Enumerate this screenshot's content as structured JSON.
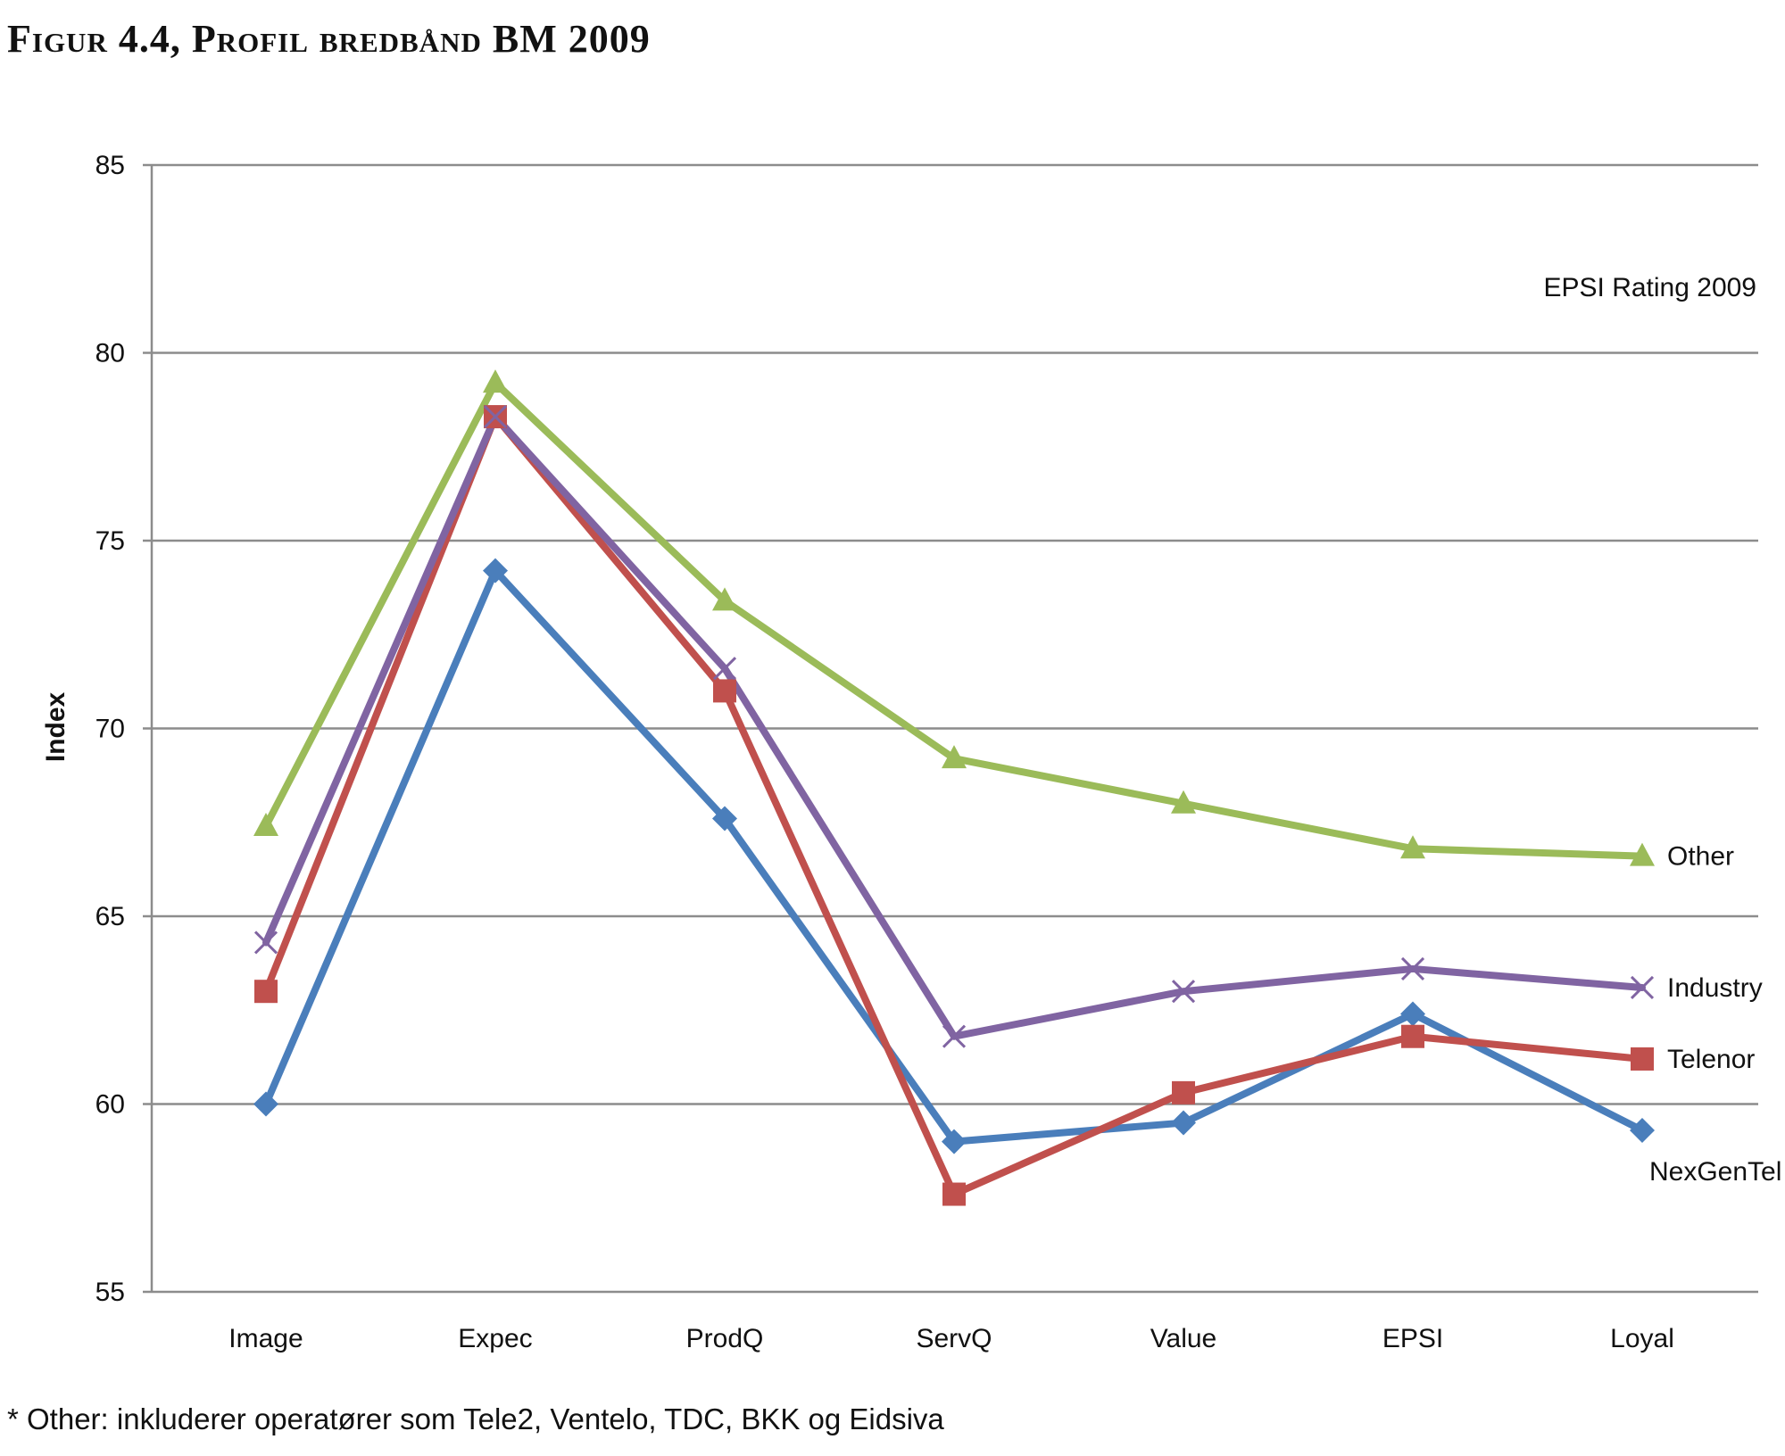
{
  "figure": {
    "title": "Figur 4.4, Profil bredbånd BM 2009",
    "footnote": "* Other: inkluderer operatører som Tele2, Ventelo, TDC, BKK og Eidsiva"
  },
  "chart_data": {
    "type": "line",
    "title": "",
    "annotation": "EPSI Rating 2009",
    "xlabel": "",
    "ylabel": "Index",
    "ylim": [
      55,
      85
    ],
    "yticks": [
      55,
      60,
      65,
      70,
      75,
      80,
      85
    ],
    "grid": true,
    "legend": "inline labels at right end of lines",
    "categories": [
      "Image",
      "Expec",
      "ProdQ",
      "ServQ",
      "Value",
      "EPSI",
      "Loyal"
    ],
    "series": [
      {
        "name": "NexGenTel",
        "color": "#4a7ebb",
        "marker": "diamond",
        "values": [
          60.0,
          74.2,
          67.6,
          59.0,
          59.5,
          62.4,
          59.3
        ]
      },
      {
        "name": "Telenor",
        "color": "#c0504d",
        "marker": "square",
        "values": [
          63.0,
          78.3,
          71.0,
          57.6,
          60.3,
          61.8,
          61.2
        ]
      },
      {
        "name": "Industry",
        "color": "#8064a2",
        "marker": "x",
        "values": [
          64.3,
          78.3,
          71.6,
          61.8,
          63.0,
          63.6,
          63.1
        ]
      },
      {
        "name": "Other",
        "color": "#9bbb59",
        "marker": "triangle",
        "values": [
          67.4,
          79.2,
          73.4,
          69.2,
          68.0,
          66.8,
          66.6
        ]
      }
    ]
  }
}
